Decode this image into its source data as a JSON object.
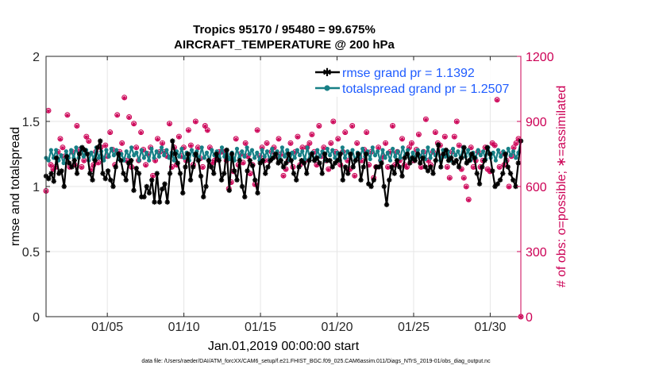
{
  "chart_data": {
    "type": "line",
    "title": "Tropics 95170 / 95480 = 99.675%",
    "subtitle": "AIRCRAFT_TEMPERATURE @ 200 hPa",
    "xlabel": "Jan.01,2019 00:00:00 start",
    "ylabel": "rmse and totalspread",
    "ylabel_right": "# of obs: o=possible; ∗=assimilated",
    "xlim": [
      1.0,
      32.0
    ],
    "ylim": [
      0,
      2
    ],
    "ylim_right": [
      0,
      1200
    ],
    "x_ticks": [
      5,
      10,
      15,
      20,
      25,
      30
    ],
    "x_tick_labels": [
      "01/05",
      "01/10",
      "01/15",
      "01/20",
      "01/25",
      "01/30"
    ],
    "y_ticks": [
      "0",
      "0.5",
      "1",
      "1.5",
      "2"
    ],
    "y_ticks_right": [
      "0",
      "300",
      "600",
      "900",
      "1200"
    ],
    "grid": true,
    "legend_position": "top-right",
    "series": [
      {
        "name": "rmse grand pr = 1.1392",
        "color": "#000000",
        "marker": "asterisk",
        "values": [
          1.08,
          1.06,
          1.1,
          1.04,
          1.22,
          1.1,
          1.12,
          1.0,
          1.23,
          1.18,
          1.15,
          1.2,
          1.1,
          1.25,
          1.3,
          1.28,
          1.25,
          1.1,
          1.05,
          1.2,
          1.3,
          1.35,
          1.1,
          1.06,
          1.12,
          1.05,
          1.0,
          1.15,
          1.25,
          1.2,
          1.1,
          1.05,
          1.18,
          1.2,
          0.97,
          1.14,
          1.1,
          0.92,
          0.92,
          1.0,
          0.95,
          1.05,
          0.88,
          1.1,
          0.88,
          0.98,
          1.02,
          0.88,
          1.1,
          1.35,
          1.25,
          1.18,
          1.1,
          0.95,
          1.15,
          1.25,
          1.05,
          1.15,
          1.25,
          1.2,
          1.08,
          0.92,
          1.0,
          1.2,
          1.15,
          1.1,
          1.25,
          1.2,
          1.05,
          1.1,
          1.28,
          0.97,
          1.25,
          1.12,
          1.05,
          1.2,
          1.0,
          0.92,
          1.12,
          1.2,
          1.16,
          1.05,
          0.95,
          1.18,
          1.2,
          1.1,
          1.15,
          1.2,
          1.22,
          1.25,
          1.18,
          1.2,
          1.15,
          1.18,
          1.25,
          1.2,
          1.1,
          1.05,
          1.15,
          1.2,
          1.18,
          1.1,
          1.2,
          1.25,
          1.2,
          1.22,
          1.18,
          1.1,
          1.25,
          1.2,
          1.2,
          1.15,
          1.18,
          1.2,
          1.25,
          1.05,
          1.15,
          1.1,
          1.25,
          1.15,
          1.2,
          1.25,
          1.05,
          1.15,
          1.25,
          1.02,
          1.0,
          1.05,
          1.15,
          1.15,
          1.18,
          1.0,
          0.86,
          1.05,
          1.15,
          1.1,
          1.2,
          1.15,
          1.08,
          1.22,
          1.25,
          1.18,
          1.22,
          1.2,
          1.25,
          1.18,
          1.22,
          1.15,
          1.12,
          1.15,
          1.1,
          1.2,
          1.32,
          1.15,
          1.25,
          1.28,
          1.2,
          1.22,
          1.18,
          1.2,
          1.15,
          1.22,
          1.3,
          1.18,
          1.2,
          1.25,
          1.22,
          1.1,
          1.02,
          1.15,
          1.2,
          1.3,
          1.25,
          1.12,
          1.0,
          1.02,
          1.05,
          1.1,
          1.25,
          1.15,
          1.1,
          1.05,
          1.0,
          1.18,
          1.35
        ]
      },
      {
        "name": "totalspread grand pr = 1.2507",
        "color": "#178086",
        "marker": "circle",
        "values": [
          1.22,
          1.2,
          1.28,
          1.22,
          1.28,
          1.2,
          1.24,
          1.18,
          1.27,
          1.22,
          1.28,
          1.22,
          1.3,
          1.22,
          1.3,
          1.23,
          1.28,
          1.2,
          1.26,
          1.21,
          1.3,
          1.22,
          1.27,
          1.2,
          1.28,
          1.23,
          1.29,
          1.24,
          1.28,
          1.21,
          1.25,
          1.2,
          1.27,
          1.23,
          1.3,
          1.24,
          1.26,
          1.2,
          1.28,
          1.22,
          1.26,
          1.2,
          1.29,
          1.22,
          1.27,
          1.23,
          1.3,
          1.24,
          1.28,
          1.22,
          1.26,
          1.2,
          1.27,
          1.23,
          1.29,
          1.22,
          1.26,
          1.2,
          1.28,
          1.24,
          1.27,
          1.21,
          1.3,
          1.22,
          1.26,
          1.2,
          1.28,
          1.24,
          1.27,
          1.22,
          1.3,
          1.23,
          1.28,
          1.21,
          1.26,
          1.2,
          1.29,
          1.22,
          1.27,
          1.23,
          1.3,
          1.25,
          1.28,
          1.22,
          1.26,
          1.2,
          1.28,
          1.23,
          1.27,
          1.2,
          1.29,
          1.24,
          1.27,
          1.22,
          1.3,
          1.23,
          1.28,
          1.2,
          1.26,
          1.22,
          1.28,
          1.24,
          1.27,
          1.21,
          1.3,
          1.22,
          1.26,
          1.2,
          1.28,
          1.23,
          1.27,
          1.2,
          1.29,
          1.24,
          1.28,
          1.22,
          1.26,
          1.2,
          1.3,
          1.22,
          1.27,
          1.23,
          1.28,
          1.2,
          1.26,
          1.22,
          1.29,
          1.23,
          1.27,
          1.21,
          1.3,
          1.24,
          1.27,
          1.2,
          1.28,
          1.22,
          1.26,
          1.2,
          1.29,
          1.23,
          1.27,
          1.22,
          1.3,
          1.24,
          1.28,
          1.2,
          1.26,
          1.22,
          1.28,
          1.23,
          1.27,
          1.21,
          1.3,
          1.22,
          1.28,
          1.24,
          1.26,
          1.2,
          1.28,
          1.23,
          1.27,
          1.2,
          1.29,
          1.24,
          1.27,
          1.22,
          1.3,
          1.23,
          1.28,
          1.2,
          1.26,
          1.22,
          1.28,
          1.24,
          1.27,
          1.21,
          1.3,
          1.22,
          1.26,
          1.2,
          1.28,
          1.23,
          1.27,
          1.2,
          1.29,
          1.24,
          1.27,
          1.22,
          1.26,
          1.35
        ]
      },
      {
        "name": "# of obs possible (right axis)",
        "color": "#cc0055",
        "marker": "o",
        "values": [
          580,
          950,
          700,
          680,
          690,
          760,
          820,
          780,
          740,
          930,
          690,
          760,
          700,
          880,
          770,
          690,
          720,
          830,
          810,
          680,
          700,
          760,
          710,
          780,
          730,
          790,
          740,
          850,
          770,
          700,
          930,
          760,
          800,
          1010,
          720,
          920,
          690,
          890,
          780,
          720,
          850,
          770,
          700,
          750,
          780,
          650,
          720,
          820,
          760,
          800,
          760,
          740,
          890,
          690,
          780,
          700,
          830,
          740,
          780,
          720,
          860,
          790,
          700,
          900,
          780,
          730,
          690,
          880,
          860,
          780,
          710,
          720,
          730,
          760,
          760,
          760,
          720,
          590,
          620,
          670,
          820,
          700,
          750,
          710,
          800,
          740,
          660,
          700,
          610,
          860,
          740,
          780,
          720,
          800,
          720,
          760,
          780,
          740,
          820,
          750,
          650,
          680,
          720,
          800,
          690,
          760,
          830,
          700,
          780,
          720,
          780,
          800,
          840,
          760,
          700,
          880,
          740,
          780,
          720,
          680,
          800,
          900,
          760,
          820,
          700,
          760,
          850,
          720,
          680,
          880,
          650,
          800,
          740,
          720,
          770,
          850,
          700,
          760,
          640,
          690,
          780,
          720,
          740,
          800,
          690,
          760,
          880,
          700,
          760,
          720,
          820,
          700,
          690,
          780,
          800,
          720,
          770,
          840,
          690,
          760,
          910,
          720,
          700,
          760,
          850,
          800,
          790,
          740,
          830,
          690,
          640,
          760,
          830,
          900,
          790,
          680,
          640,
          600,
          540,
          780,
          690,
          720,
          760,
          690,
          720,
          780,
          680,
          670,
          800,
          790,
          1000,
          690,
          750,
          700,
          720,
          600,
          740,
          780,
          800,
          820,
          0
        ]
      },
      {
        "name": "# of obs assimilated (right axis)",
        "color": "#cc0055",
        "marker": "asterisk",
        "values": [
          578,
          948,
          698,
          678,
          688,
          758,
          818,
          778,
          738,
          928,
          688,
          758,
          698,
          878,
          768,
          688,
          718,
          828,
          808,
          678,
          698,
          758,
          708,
          778,
          728,
          788,
          738,
          848,
          768,
          698,
          928,
          758,
          798,
          1008,
          718,
          918,
          688,
          888,
          778,
          718,
          848,
          768,
          698,
          748,
          778,
          648,
          718,
          818,
          758,
          798,
          758,
          738,
          888,
          688,
          778,
          698,
          828,
          738,
          778,
          718,
          858,
          788,
          698,
          898,
          778,
          728,
          688,
          878,
          858,
          778,
          708,
          718,
          728,
          758,
          758,
          758,
          718,
          588,
          618,
          668,
          818,
          698,
          748,
          708,
          798,
          738,
          658,
          698,
          608,
          858,
          738,
          778,
          718,
          798,
          718,
          758,
          778,
          738,
          818,
          748,
          648,
          678,
          718,
          798,
          688,
          758,
          828,
          698,
          778,
          718,
          778,
          798,
          838,
          758,
          698,
          878,
          738,
          778,
          718,
          678,
          798,
          898,
          758,
          818,
          698,
          758,
          848,
          718,
          678,
          878,
          648,
          798,
          738,
          718,
          768,
          848,
          698,
          758,
          638,
          688,
          778,
          718,
          738,
          798,
          688,
          758,
          878,
          698,
          758,
          718,
          818,
          698,
          688,
          778,
          798,
          718,
          768,
          838,
          688,
          758,
          908,
          718,
          698,
          758,
          848,
          798,
          788,
          738,
          828,
          688,
          638,
          758,
          828,
          898,
          788,
          678,
          638,
          598,
          538,
          778,
          688,
          718,
          758,
          688,
          718,
          778,
          678,
          668,
          798,
          788,
          998,
          688,
          748,
          698,
          718,
          598,
          738,
          778,
          798,
          818,
          0
        ]
      }
    ]
  },
  "footer": "data file: /Users/raeder/DAI/ATM_forcXX/CAM6_setup/f.e21.FHIST_BGC.f09_025.CAM6assim.011/Diags_NTrS_2019-01/obs_diag_output.nc"
}
